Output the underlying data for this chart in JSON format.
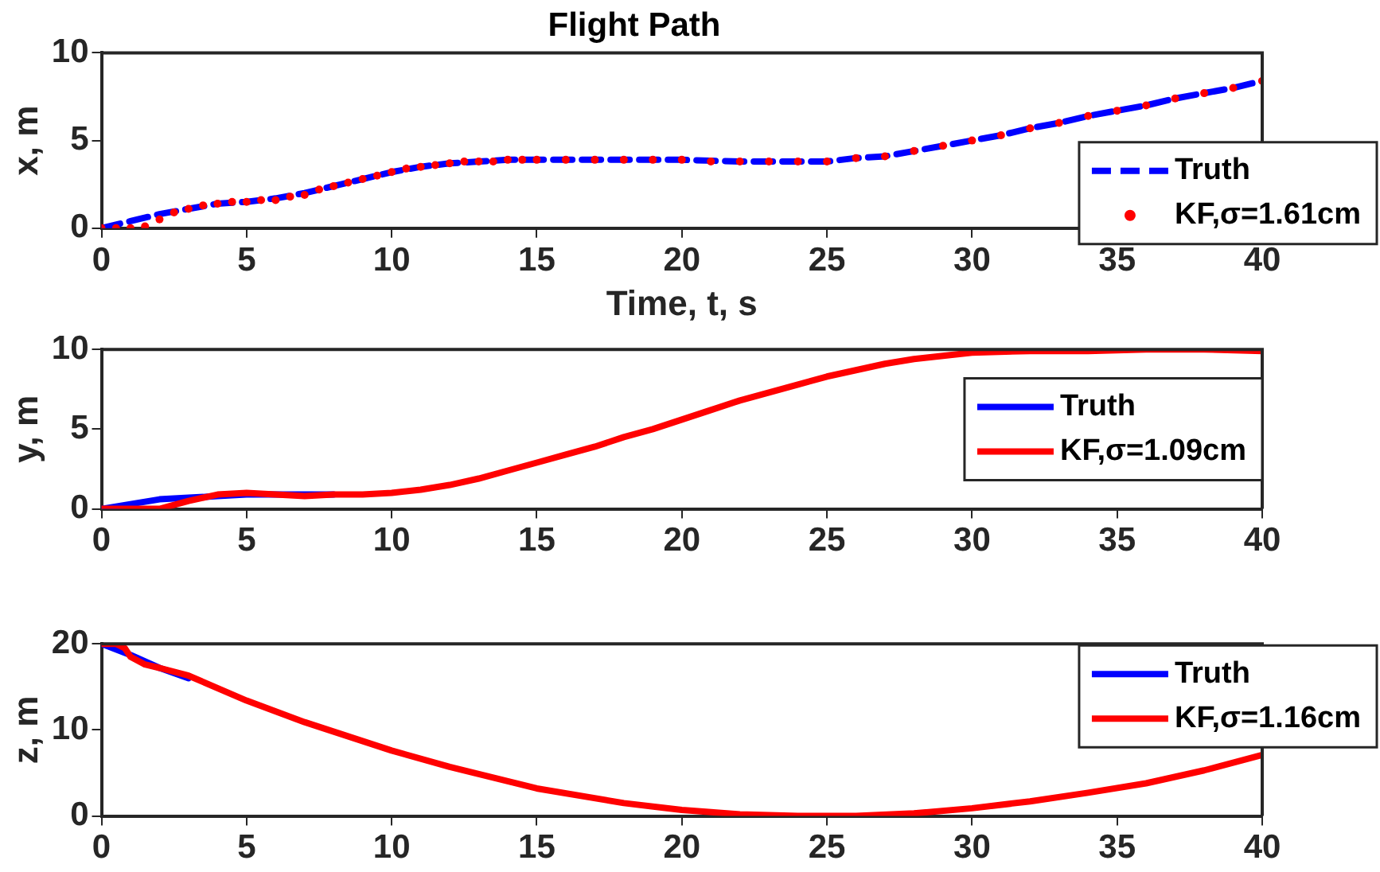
{
  "chart_data": [
    {
      "type": "line",
      "title": "Flight Path",
      "xlabel": "Time, t, s",
      "ylabel": "x, m",
      "xlim": [
        0,
        40
      ],
      "xticks": [
        0,
        5,
        10,
        15,
        20,
        25,
        30,
        35,
        40
      ],
      "ylim": [
        0,
        10
      ],
      "yticks": [
        0,
        5,
        10
      ],
      "legend": "bottom right",
      "grid": false,
      "series": [
        {
          "name": "Truth",
          "color": "#0000ff",
          "line_style": "dashed",
          "x": [
            0,
            1,
            2,
            3,
            4,
            5,
            6,
            7,
            8,
            9,
            10,
            11,
            12,
            13,
            14,
            15,
            17,
            20,
            22,
            23,
            24,
            25,
            26,
            27,
            28,
            29,
            30,
            31,
            32,
            33,
            34,
            35,
            36,
            37,
            38,
            39,
            40
          ],
          "values": [
            0,
            0.4,
            0.8,
            1.1,
            1.4,
            1.5,
            1.7,
            2.0,
            2.4,
            2.8,
            3.2,
            3.5,
            3.7,
            3.8,
            3.9,
            3.9,
            3.9,
            3.9,
            3.8,
            3.8,
            3.8,
            3.8,
            4.0,
            4.1,
            4.4,
            4.7,
            5.0,
            5.3,
            5.7,
            6.0,
            6.4,
            6.7,
            7.0,
            7.4,
            7.7,
            8.0,
            8.4
          ]
        },
        {
          "name": "KF,σ=1.61cm",
          "color": "#ff0000",
          "type": "scatter",
          "marker": "circle",
          "x": [
            0,
            0.5,
            1,
            1.5,
            2,
            2.5,
            3,
            3.5,
            4,
            4.5,
            5,
            5.5,
            6,
            6.5,
            7,
            7.5,
            8,
            8.5,
            9,
            9.5,
            10,
            10.5,
            11,
            11.5,
            12,
            12.5,
            13,
            13.5,
            14,
            14.5,
            15,
            16,
            17,
            18,
            19,
            20,
            21,
            22,
            23,
            24,
            25,
            26,
            27,
            28,
            29,
            30,
            31,
            32,
            33,
            34,
            35,
            36,
            37,
            38,
            39,
            40
          ],
          "values": [
            0,
            0,
            0,
            0.1,
            0.5,
            0.9,
            1.1,
            1.3,
            1.4,
            1.5,
            1.5,
            1.6,
            1.6,
            1.8,
            1.9,
            2.2,
            2.4,
            2.6,
            2.8,
            3.0,
            3.2,
            3.4,
            3.5,
            3.6,
            3.7,
            3.8,
            3.8,
            3.8,
            3.9,
            3.9,
            3.9,
            3.9,
            3.9,
            3.9,
            3.9,
            3.9,
            3.8,
            3.8,
            3.8,
            3.8,
            3.8,
            4.0,
            4.1,
            4.4,
            4.7,
            5.0,
            5.3,
            5.7,
            6.0,
            6.4,
            6.7,
            7.0,
            7.4,
            7.7,
            8.0,
            8.4
          ]
        }
      ]
    },
    {
      "type": "line",
      "ylabel": "y, m",
      "xlim": [
        0,
        40
      ],
      "xticks": [
        0,
        5,
        10,
        15,
        20,
        25,
        30,
        35,
        40
      ],
      "ylim": [
        0,
        10
      ],
      "yticks": [
        0,
        5,
        10
      ],
      "legend": "right",
      "grid": false,
      "series": [
        {
          "name": "Truth",
          "color": "#0000ff",
          "x": [
            0,
            1,
            2,
            3,
            4,
            5,
            6,
            7,
            8
          ],
          "values": [
            0,
            0.3,
            0.6,
            0.7,
            0.8,
            0.9,
            0.9,
            0.9,
            0.9
          ]
        },
        {
          "name": "KF,σ=1.09cm",
          "color": "#ff0000",
          "x": [
            0,
            1,
            2,
            3,
            4,
            5,
            6,
            7,
            8,
            9,
            10,
            11,
            12,
            13,
            14,
            15,
            16,
            17,
            18,
            19,
            20,
            21,
            22,
            23,
            24,
            25,
            26,
            27,
            28,
            29,
            30,
            32,
            34,
            36,
            38,
            40
          ],
          "values": [
            0,
            0,
            0,
            0.5,
            0.9,
            1.0,
            0.9,
            0.8,
            0.9,
            0.9,
            1.0,
            1.2,
            1.5,
            1.9,
            2.4,
            2.9,
            3.4,
            3.9,
            4.5,
            5.0,
            5.6,
            6.2,
            6.8,
            7.3,
            7.8,
            8.3,
            8.7,
            9.1,
            9.4,
            9.6,
            9.8,
            9.9,
            9.9,
            10.0,
            10.0,
            9.9
          ]
        }
      ]
    },
    {
      "type": "line",
      "ylabel": "z, m",
      "xlim": [
        0,
        40
      ],
      "xticks": [
        0,
        5,
        10,
        15,
        20,
        25,
        30,
        35,
        40
      ],
      "ylim": [
        0,
        20
      ],
      "yticks": [
        0,
        10,
        20
      ],
      "legend": "top right",
      "grid": false,
      "series": [
        {
          "name": "Truth",
          "color": "#0000ff",
          "x": [
            0,
            1,
            2,
            3
          ],
          "values": [
            20,
            18.7,
            17.2,
            16
          ]
        },
        {
          "name": "KF,σ=1.16cm",
          "color": "#ff0000",
          "x": [
            0,
            0.5,
            0.8,
            1,
            1.5,
            2,
            3,
            5,
            7,
            10,
            12,
            15,
            18,
            20,
            22,
            24,
            25,
            26,
            28,
            30,
            32,
            34,
            36,
            38,
            40
          ],
          "values": [
            20,
            20,
            19.5,
            18.5,
            17.6,
            17.2,
            16.3,
            13.4,
            10.9,
            7.6,
            5.7,
            3.2,
            1.5,
            0.7,
            0.2,
            0,
            0,
            0,
            0.3,
            0.9,
            1.7,
            2.7,
            3.8,
            5.3,
            7.1
          ]
        }
      ]
    }
  ]
}
